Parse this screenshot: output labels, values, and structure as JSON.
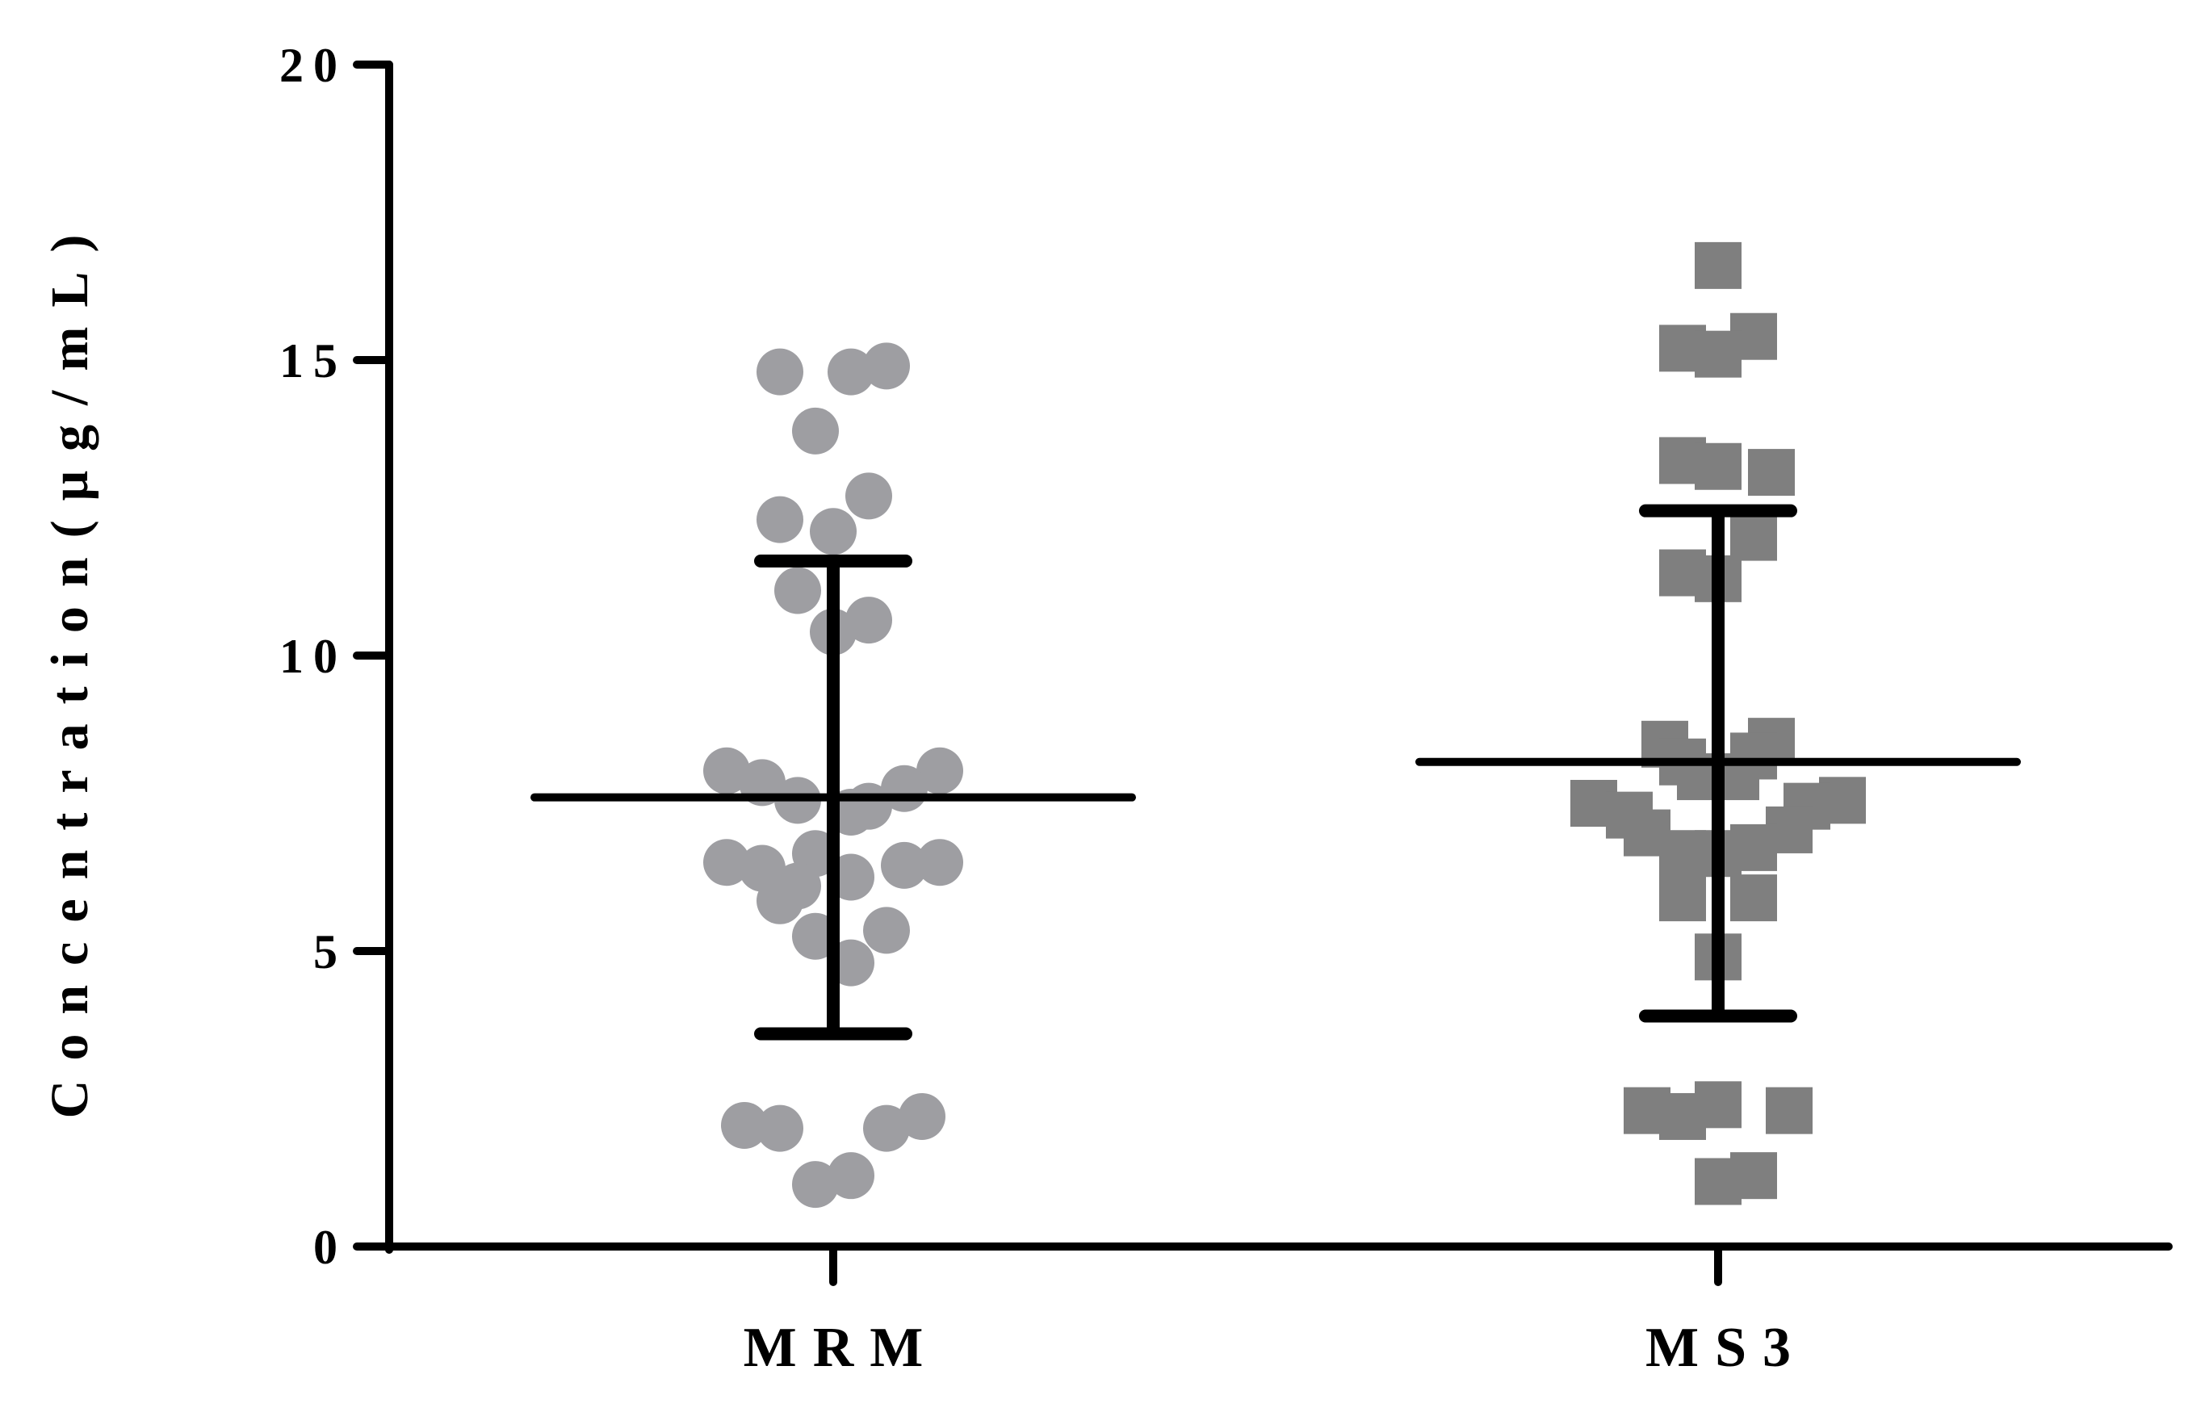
{
  "chart_data": {
    "type": "scatter",
    "title": "",
    "xlabel": "",
    "ylabel": "Concentration(μg/mL)",
    "ylim": [
      0,
      20
    ],
    "y_ticks": [
      "0",
      "5",
      "10",
      "15",
      "20"
    ],
    "y_tick_values": [
      0,
      5,
      10,
      15,
      20
    ],
    "categories": [
      "MRM",
      "MS3"
    ],
    "grid": false,
    "legend": "none",
    "colors": {
      "MRM": "#9e9ea2",
      "MS3": "#7f7f7f",
      "axis": "#000000"
    },
    "series": [
      {
        "category": "MRM",
        "marker": "circle",
        "mean": 7.6,
        "sd_upper": 11.6,
        "sd_lower": 3.6,
        "points": [
          {
            "dx": -1.5,
            "y": 14.8
          },
          {
            "dx": 0.5,
            "y": 14.8
          },
          {
            "dx": 1.5,
            "y": 14.9
          },
          {
            "dx": -0.5,
            "y": 13.8
          },
          {
            "dx": 1.0,
            "y": 12.7
          },
          {
            "dx": -1.5,
            "y": 12.3
          },
          {
            "dx": 0.0,
            "y": 12.1
          },
          {
            "dx": -1.0,
            "y": 11.1
          },
          {
            "dx": 1.0,
            "y": 10.6
          },
          {
            "dx": 0.0,
            "y": 10.4
          },
          {
            "dx": -3.0,
            "y": 8.05
          },
          {
            "dx": 3.0,
            "y": 8.05
          },
          {
            "dx": -2.0,
            "y": 7.85
          },
          {
            "dx": 2.0,
            "y": 7.75
          },
          {
            "dx": -1.0,
            "y": 7.55
          },
          {
            "dx": 1.0,
            "y": 7.45
          },
          {
            "dx": 0.5,
            "y": 7.35
          },
          {
            "dx": -0.5,
            "y": 6.65
          },
          {
            "dx": -3.0,
            "y": 6.5
          },
          {
            "dx": 3.0,
            "y": 6.5
          },
          {
            "dx": -2.0,
            "y": 6.4
          },
          {
            "dx": 2.0,
            "y": 6.45
          },
          {
            "dx": 0.5,
            "y": 6.25
          },
          {
            "dx": -1.0,
            "y": 6.1
          },
          {
            "dx": -1.5,
            "y": 5.85
          },
          {
            "dx": 1.5,
            "y": 5.35
          },
          {
            "dx": -0.5,
            "y": 5.25
          },
          {
            "dx": 0.5,
            "y": 4.8
          },
          {
            "dx": 2.5,
            "y": 2.2
          },
          {
            "dx": -2.5,
            "y": 2.05
          },
          {
            "dx": 1.5,
            "y": 2.0
          },
          {
            "dx": -1.5,
            "y": 2.0
          },
          {
            "dx": 0.5,
            "y": 1.2
          },
          {
            "dx": -0.5,
            "y": 1.05
          }
        ]
      },
      {
        "category": "MS3",
        "marker": "square",
        "mean": 8.2,
        "sd_upper": 12.45,
        "sd_lower": 3.9,
        "points": [
          {
            "dx": 0.0,
            "y": 16.6
          },
          {
            "dx": 1.0,
            "y": 15.4
          },
          {
            "dx": -1.0,
            "y": 15.2
          },
          {
            "dx": 0.0,
            "y": 15.1
          },
          {
            "dx": -1.0,
            "y": 13.3
          },
          {
            "dx": 0.0,
            "y": 13.2
          },
          {
            "dx": 1.5,
            "y": 13.1
          },
          {
            "dx": 1.0,
            "y": 12.0
          },
          {
            "dx": -1.0,
            "y": 11.4
          },
          {
            "dx": 0.0,
            "y": 11.3
          },
          {
            "dx": 1.5,
            "y": 8.55
          },
          {
            "dx": -1.5,
            "y": 8.5
          },
          {
            "dx": -1.0,
            "y": 8.2
          },
          {
            "dx": 1.0,
            "y": 8.3
          },
          {
            "dx": -0.5,
            "y": 7.95
          },
          {
            "dx": 0.5,
            "y": 7.95
          },
          {
            "dx": -3.5,
            "y": 7.5
          },
          {
            "dx": 3.5,
            "y": 7.55
          },
          {
            "dx": -2.5,
            "y": 7.3
          },
          {
            "dx": 2.5,
            "y": 7.45
          },
          {
            "dx": -2.0,
            "y": 7.0
          },
          {
            "dx": 2.0,
            "y": 7.05
          },
          {
            "dx": 1.0,
            "y": 6.75
          },
          {
            "dx": -1.0,
            "y": 6.65
          },
          {
            "dx": 0.0,
            "y": 6.65
          },
          {
            "dx": -1.0,
            "y": 5.9
          },
          {
            "dx": 1.0,
            "y": 5.9
          },
          {
            "dx": 0.0,
            "y": 4.9
          },
          {
            "dx": 0.0,
            "y": 2.4
          },
          {
            "dx": -2.0,
            "y": 2.3
          },
          {
            "dx": 2.0,
            "y": 2.3
          },
          {
            "dx": -1.0,
            "y": 2.2
          },
          {
            "dx": 1.0,
            "y": 1.2
          },
          {
            "dx": 0.0,
            "y": 1.1
          }
        ]
      }
    ]
  }
}
